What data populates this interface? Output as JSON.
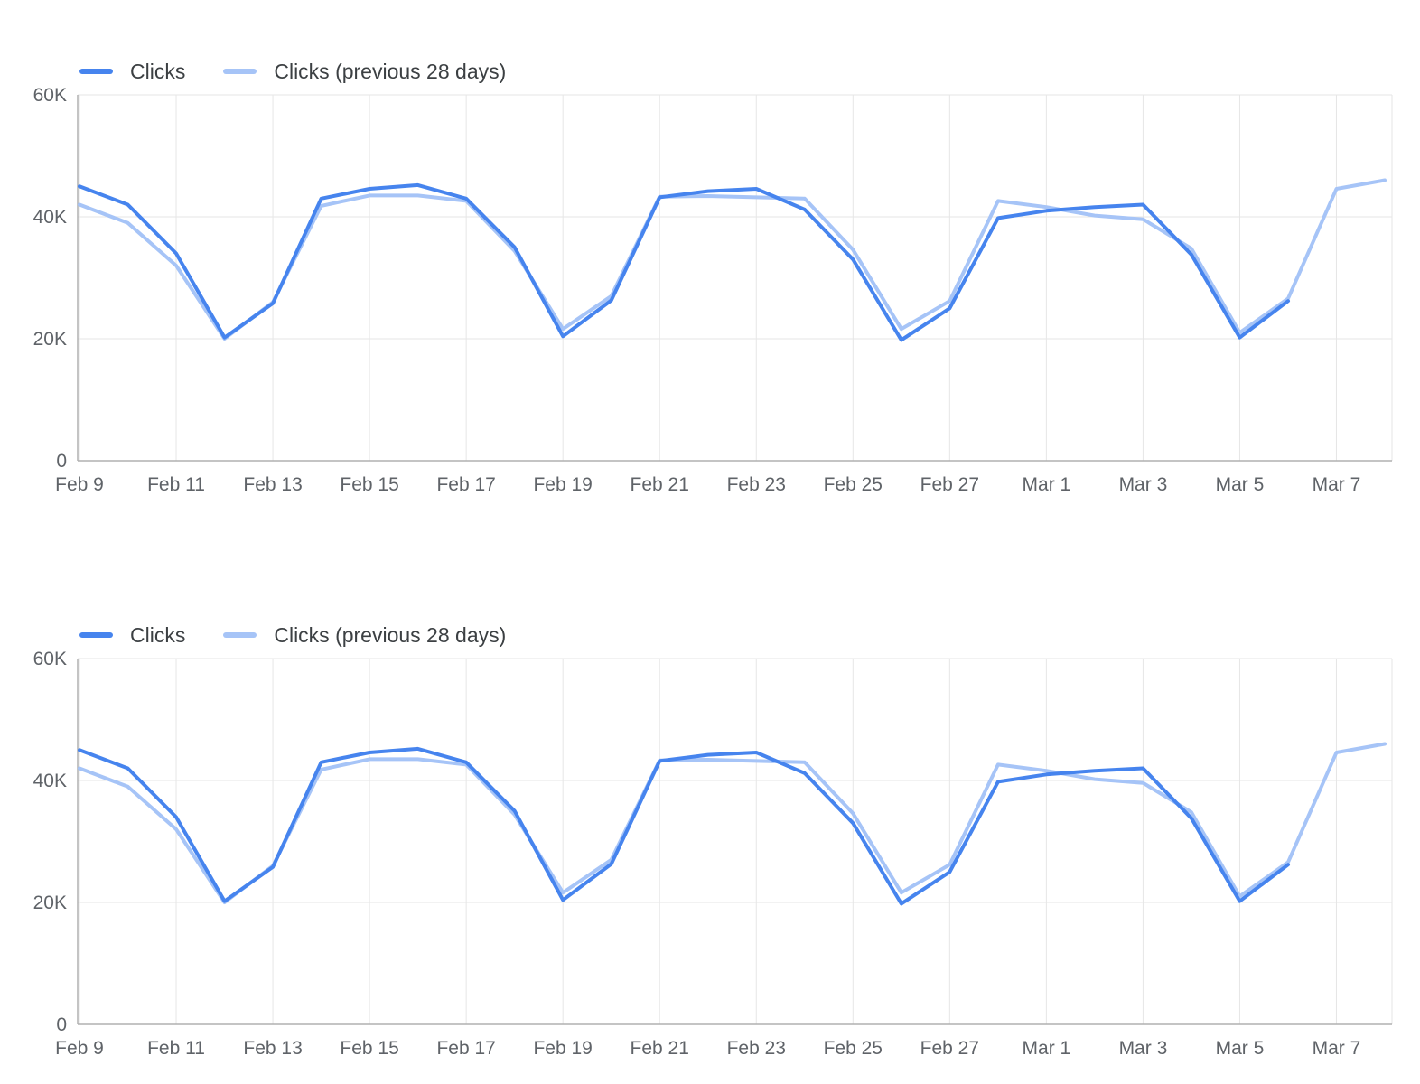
{
  "page": {
    "background": "#ffffff"
  },
  "chart_data": [
    {
      "type": "line",
      "title": "",
      "xlabel": "",
      "ylabel": "",
      "ylim": [
        0,
        60000
      ],
      "grid": true,
      "legend_position": "top-left",
      "grid_color": "#e6e6e6",
      "axis_color": "#b0b0b0",
      "tick_label_color": "#5f6368",
      "x": [
        "Feb 9",
        "Feb 10",
        "Feb 11",
        "Feb 12",
        "Feb 13",
        "Feb 14",
        "Feb 15",
        "Feb 16",
        "Feb 17",
        "Feb 18",
        "Feb 19",
        "Feb 20",
        "Feb 21",
        "Feb 22",
        "Feb 23",
        "Feb 24",
        "Feb 25",
        "Feb 26",
        "Feb 27",
        "Feb 28",
        "Mar 1",
        "Mar 2",
        "Mar 3",
        "Mar 4",
        "Mar 5",
        "Mar 6",
        "Mar 7",
        "Mar 8"
      ],
      "x_tick_labels": [
        "Feb 9",
        "Feb 11",
        "Feb 13",
        "Feb 15",
        "Feb 17",
        "Feb 19",
        "Feb 21",
        "Feb 23",
        "Feb 25",
        "Feb 27",
        "Mar 1",
        "Mar 3",
        "Mar 5",
        "Mar 7"
      ],
      "x_tick_step": 2,
      "y_ticks": [
        {
          "label": "0",
          "value": 0
        },
        {
          "label": "20K",
          "value": 20000
        },
        {
          "label": "40K",
          "value": 40000
        },
        {
          "label": "60K",
          "value": 60000
        }
      ],
      "series": [
        {
          "name": "Clicks",
          "color": "#4684ee",
          "values": [
            45000,
            42000,
            34000,
            20200,
            25800,
            43000,
            44600,
            45200,
            43000,
            35000,
            20400,
            26300,
            43200,
            44200,
            44600,
            41200,
            33000,
            19800,
            25000,
            39800,
            41000,
            41600,
            42000,
            33800,
            20200,
            26200,
            null,
            null
          ]
        },
        {
          "name": "Clicks (previous 28 days)",
          "color": "#a6c4f7",
          "values": [
            42000,
            39000,
            32000,
            20000,
            26000,
            41800,
            43500,
            43500,
            42600,
            34400,
            21600,
            27000,
            43300,
            43400,
            43200,
            43000,
            34600,
            21600,
            26200,
            42600,
            41600,
            40200,
            39600,
            34800,
            21000,
            26600,
            44600,
            46000
          ]
        }
      ]
    },
    {
      "type": "line",
      "title": "",
      "xlabel": "",
      "ylabel": "",
      "ylim": [
        0,
        60000
      ],
      "grid": true,
      "legend_position": "top-left",
      "grid_color": "#e6e6e6",
      "axis_color": "#b0b0b0",
      "tick_label_color": "#5f6368",
      "x": [
        "Feb 9",
        "Feb 10",
        "Feb 11",
        "Feb 12",
        "Feb 13",
        "Feb 14",
        "Feb 15",
        "Feb 16",
        "Feb 17",
        "Feb 18",
        "Feb 19",
        "Feb 20",
        "Feb 21",
        "Feb 22",
        "Feb 23",
        "Feb 24",
        "Feb 25",
        "Feb 26",
        "Feb 27",
        "Feb 28",
        "Mar 1",
        "Mar 2",
        "Mar 3",
        "Mar 4",
        "Mar 5",
        "Mar 6",
        "Mar 7",
        "Mar 8"
      ],
      "x_tick_labels": [
        "Feb 9",
        "Feb 11",
        "Feb 13",
        "Feb 15",
        "Feb 17",
        "Feb 19",
        "Feb 21",
        "Feb 23",
        "Feb 25",
        "Feb 27",
        "Mar 1",
        "Mar 3",
        "Mar 5",
        "Mar 7"
      ],
      "x_tick_step": 2,
      "y_ticks": [
        {
          "label": "0",
          "value": 0
        },
        {
          "label": "20K",
          "value": 20000
        },
        {
          "label": "40K",
          "value": 40000
        },
        {
          "label": "60K",
          "value": 60000
        }
      ],
      "series": [
        {
          "name": "Clicks",
          "color": "#4684ee",
          "values": [
            45000,
            42000,
            34000,
            20200,
            25800,
            43000,
            44600,
            45200,
            43000,
            35000,
            20400,
            26300,
            43200,
            44200,
            44600,
            41200,
            33000,
            19800,
            25000,
            39800,
            41000,
            41600,
            42000,
            33800,
            20200,
            26200,
            null,
            null
          ]
        },
        {
          "name": "Clicks (previous 28 days)",
          "color": "#a6c4f7",
          "values": [
            42000,
            39000,
            32000,
            20000,
            26000,
            41800,
            43500,
            43500,
            42600,
            34400,
            21600,
            27000,
            43300,
            43400,
            43200,
            43000,
            34600,
            21600,
            26200,
            42600,
            41600,
            40200,
            39600,
            34800,
            21000,
            26600,
            44600,
            46000
          ]
        }
      ]
    }
  ]
}
